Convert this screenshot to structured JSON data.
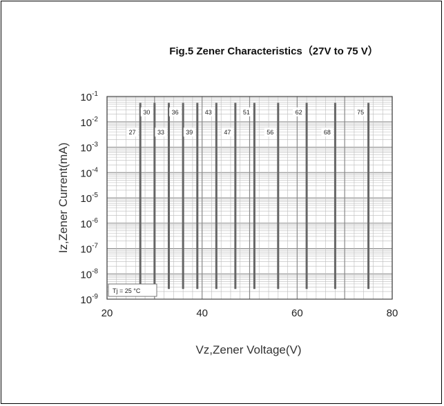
{
  "chart_data": {
    "type": "line",
    "title": "Fig.5 Zener Characteristics（27V to 75 V）",
    "xlabel": "Vz,Zener Voltage(V)",
    "ylabel": "Iz,Zener Current(mA)",
    "xlim": [
      20,
      80
    ],
    "ylim_exp": [
      -9,
      -1
    ],
    "yscale": "log",
    "grid": true,
    "x_tick_labels": [
      "20",
      "40",
      "60",
      "80"
    ],
    "y_tick_labels": [
      {
        "base": "10",
        "exp": "-1"
      },
      {
        "base": "10",
        "exp": "-2"
      },
      {
        "base": "10",
        "exp": "-3"
      },
      {
        "base": "10",
        "exp": "-4"
      },
      {
        "base": "10",
        "exp": "-5"
      },
      {
        "base": "10",
        "exp": "-6"
      },
      {
        "base": "10",
        "exp": "-7"
      },
      {
        "base": "10",
        "exp": "-8"
      },
      {
        "base": "10",
        "exp": "-9"
      }
    ],
    "annotation": "Tj = 25 °C",
    "series": [
      {
        "name": "27",
        "vz": 27,
        "label_row": "low"
      },
      {
        "name": "30",
        "vz": 30,
        "label_row": "high"
      },
      {
        "name": "33",
        "vz": 33,
        "label_row": "low"
      },
      {
        "name": "36",
        "vz": 36,
        "label_row": "high"
      },
      {
        "name": "39",
        "vz": 39,
        "label_row": "low"
      },
      {
        "name": "43",
        "vz": 43,
        "label_row": "high"
      },
      {
        "name": "47",
        "vz": 47,
        "label_row": "low"
      },
      {
        "name": "51",
        "vz": 51,
        "label_row": "high"
      },
      {
        "name": "56",
        "vz": 56,
        "label_row": "low"
      },
      {
        "name": "62",
        "vz": 62,
        "label_row": "high"
      },
      {
        "name": "68",
        "vz": 68,
        "label_row": "low"
      },
      {
        "name": "75",
        "vz": 75,
        "label_row": "high"
      }
    ],
    "colors": {
      "curve": "#666666",
      "grid_major": "#888888",
      "grid_minor": "#bbbbbb"
    }
  }
}
